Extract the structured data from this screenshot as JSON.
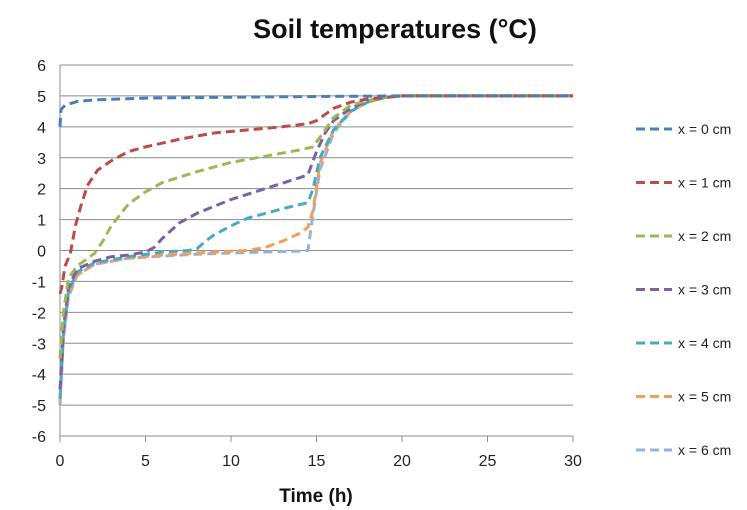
{
  "chart_data": {
    "type": "line",
    "title": "Soil temperatures (°C)",
    "xlabel": "Time (h)",
    "ylabel": "",
    "xlim": [
      0,
      30
    ],
    "ylim": [
      -6,
      6
    ],
    "xticks": [
      0,
      5,
      10,
      15,
      20,
      25,
      30
    ],
    "yticks": [
      -6,
      -5,
      -4,
      -3,
      -2,
      -1,
      0,
      1,
      2,
      3,
      4,
      5,
      6
    ],
    "grid": "horizontal",
    "legend_position": "right",
    "line_style": "dashed",
    "series": [
      {
        "name": "x = 0 cm",
        "color": "#4a7ebb",
        "x": [
          0,
          0.05,
          0.3,
          1,
          2,
          5,
          10,
          15,
          20,
          30
        ],
        "y": [
          4.0,
          4.55,
          4.7,
          4.82,
          4.87,
          4.93,
          4.96,
          4.98,
          5.0,
          5.0
        ]
      },
      {
        "name": "x = 1 cm",
        "color": "#be4b48",
        "x": [
          0,
          0.1,
          0.3,
          0.6,
          0.9,
          1.2,
          1.6,
          2.2,
          3,
          4,
          5,
          7,
          9,
          11,
          13,
          14.5,
          15,
          16,
          17,
          18,
          19,
          20,
          30
        ],
        "y": [
          -1.4,
          -1.2,
          -0.5,
          -0.1,
          0.8,
          1.4,
          2.1,
          2.6,
          2.9,
          3.2,
          3.35,
          3.6,
          3.8,
          3.9,
          4.0,
          4.1,
          4.2,
          4.6,
          4.8,
          4.9,
          4.95,
          5.0,
          5.0
        ]
      },
      {
        "name": "x = 2 cm",
        "color": "#98b954",
        "x": [
          0,
          0.2,
          0.5,
          1,
          1.5,
          2,
          2.5,
          3,
          4,
          5,
          6,
          8,
          10,
          12,
          14,
          14.8,
          15.5,
          16,
          17,
          18,
          19,
          20,
          30
        ],
        "y": [
          -3.5,
          -2.0,
          -0.9,
          -0.5,
          -0.3,
          -0.1,
          0.3,
          0.8,
          1.5,
          1.9,
          2.2,
          2.55,
          2.85,
          3.05,
          3.25,
          3.35,
          3.9,
          4.3,
          4.7,
          4.85,
          4.95,
          5.0,
          5.0
        ]
      },
      {
        "name": "x = 3 cm",
        "color": "#7d60a0",
        "x": [
          0,
          0.2,
          0.5,
          1,
          2,
          3,
          4,
          5,
          5.5,
          6,
          7,
          8,
          10,
          12,
          14,
          14.5,
          15,
          15.5,
          16,
          17,
          18,
          19,
          20,
          30
        ],
        "y": [
          -4.5,
          -2.5,
          -1.2,
          -0.6,
          -0.35,
          -0.2,
          -0.15,
          -0.05,
          0.1,
          0.4,
          0.9,
          1.2,
          1.65,
          2.0,
          2.35,
          2.45,
          3.2,
          3.8,
          4.2,
          4.6,
          4.85,
          4.95,
          5.0,
          5.0
        ]
      },
      {
        "name": "x = 4 cm",
        "color": "#46aac5",
        "x": [
          0,
          0.2,
          0.5,
          1,
          2,
          4,
          6,
          7.5,
          8,
          8.5,
          9,
          10,
          11,
          12,
          13,
          14.5,
          14.8,
          15.2,
          16,
          17,
          18,
          19,
          20,
          30
        ],
        "y": [
          -4.8,
          -2.7,
          -1.3,
          -0.7,
          -0.4,
          -0.2,
          -0.05,
          0,
          0.05,
          0.3,
          0.5,
          0.8,
          1.05,
          1.2,
          1.35,
          1.55,
          2.0,
          3.0,
          3.9,
          4.5,
          4.8,
          4.95,
          5.0,
          5.0
        ]
      },
      {
        "name": "x = 5 cm",
        "color": "#f59d56",
        "x": [
          0,
          0.2,
          0.5,
          1,
          2,
          4,
          6,
          8,
          10,
          11,
          12,
          13,
          14,
          14.5,
          14.8,
          15.2,
          16,
          17,
          18,
          19,
          20,
          30
        ],
        "y": [
          -4.9,
          -2.8,
          -1.4,
          -0.8,
          -0.45,
          -0.25,
          -0.15,
          -0.08,
          -0.02,
          0,
          0.1,
          0.3,
          0.55,
          0.75,
          1.3,
          2.8,
          3.9,
          4.5,
          4.8,
          4.95,
          5.0,
          5.0
        ]
      },
      {
        "name": "x = 6 cm",
        "color": "#95b3d7",
        "x": [
          0,
          0.2,
          0.5,
          1,
          2,
          4,
          6,
          8,
          10,
          12,
          14,
          14.5,
          14.8,
          15.2,
          16,
          17,
          18,
          19,
          20,
          30
        ],
        "y": [
          -5.0,
          -2.9,
          -1.5,
          -0.8,
          -0.45,
          -0.25,
          -0.18,
          -0.12,
          -0.08,
          -0.05,
          -0.02,
          0,
          1.2,
          2.6,
          3.8,
          4.5,
          4.8,
          4.95,
          5.0,
          5.0
        ]
      }
    ]
  }
}
